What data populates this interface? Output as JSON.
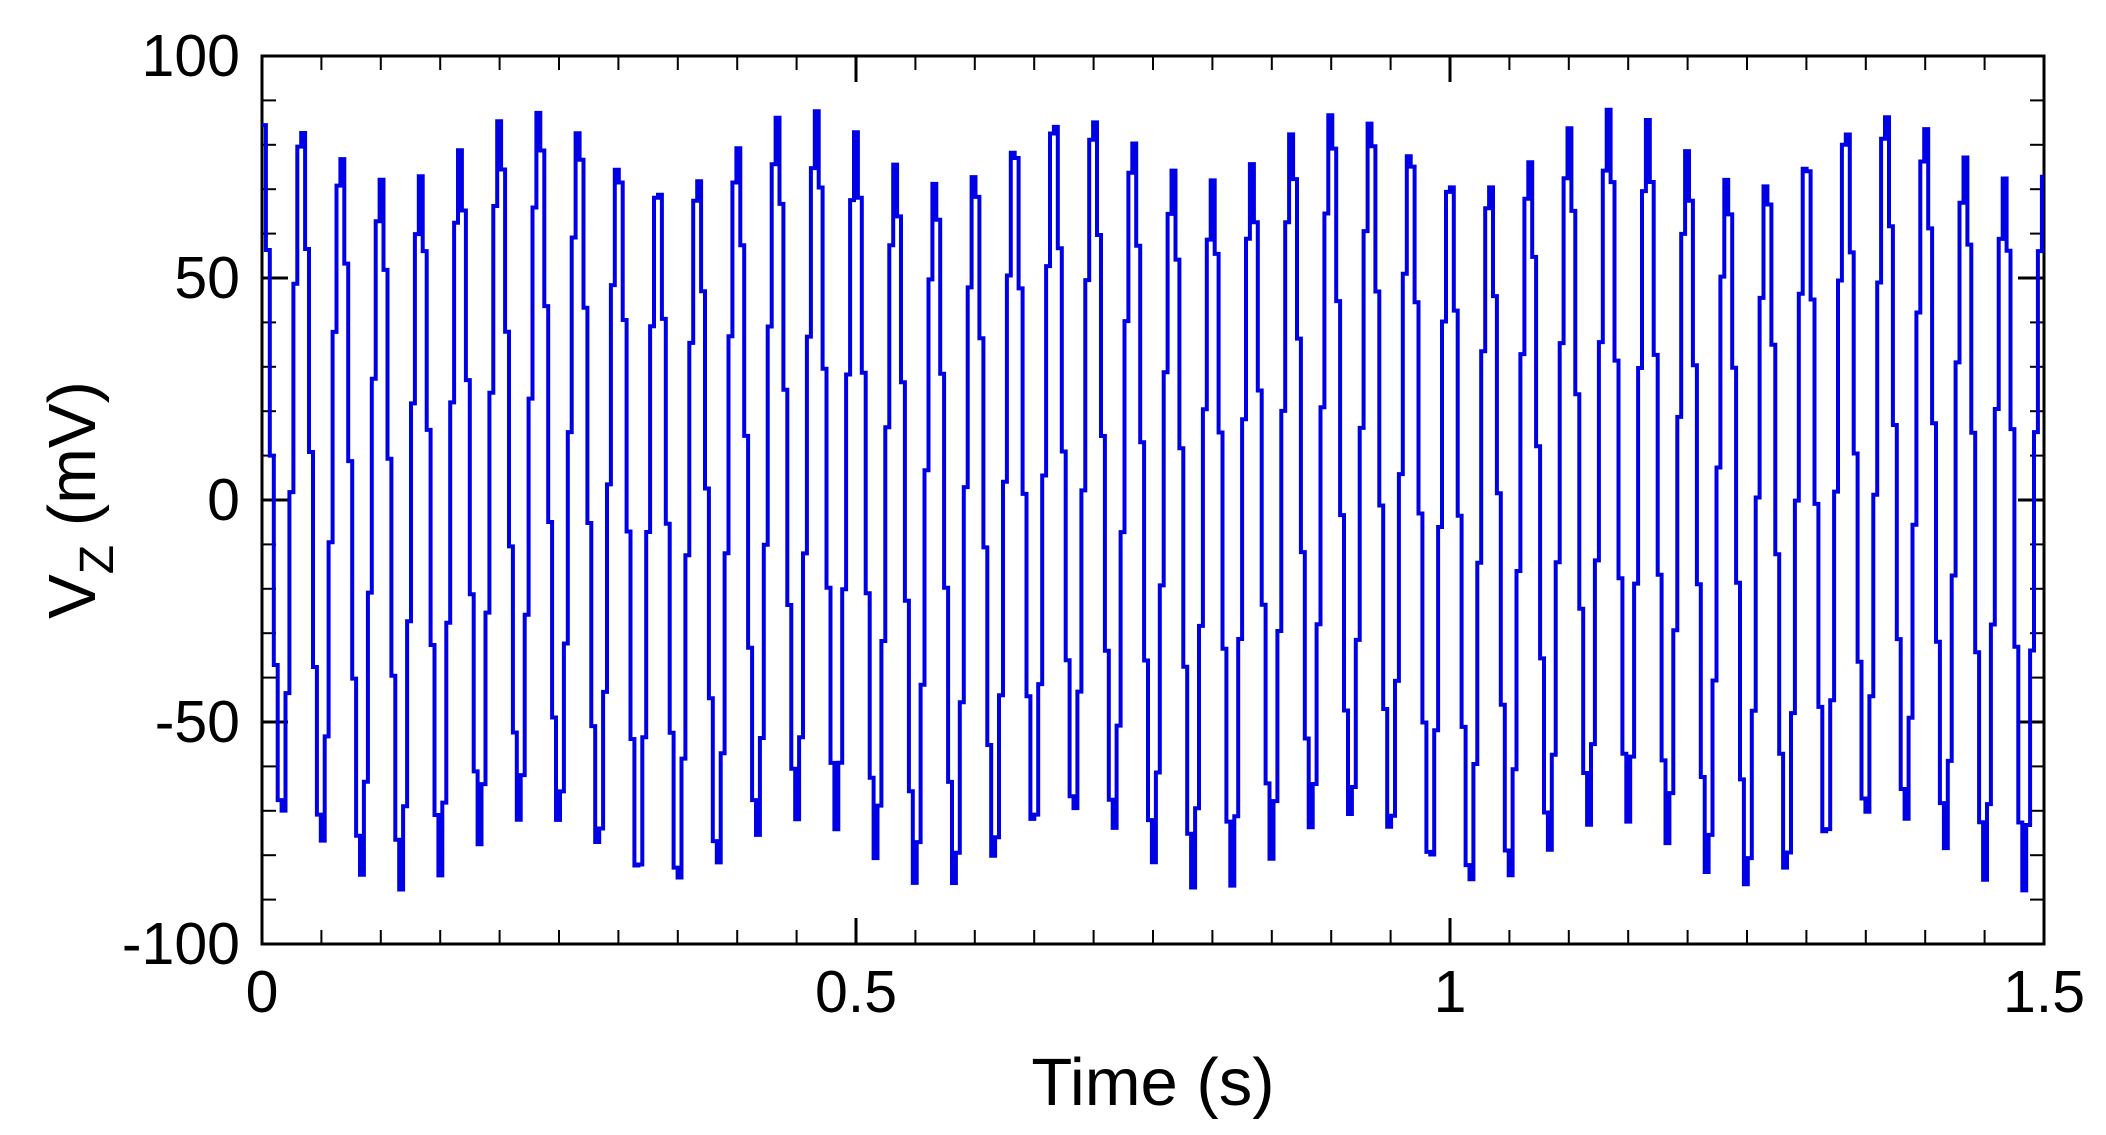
{
  "chart_data": {
    "type": "line",
    "title": "",
    "xlabel": "Time (s)",
    "ylabel": {
      "main": "V",
      "subscript": "Z",
      "unit": " (mV)"
    },
    "xlim": [
      0,
      1.5
    ],
    "ylim": [
      -100,
      100
    ],
    "x_ticks": [
      0,
      0.5,
      1,
      1.5
    ],
    "x_tick_labels": [
      "0",
      "0.5",
      "1",
      "1.5"
    ],
    "y_ticks": [
      -100,
      -50,
      0,
      50,
      100
    ],
    "y_tick_labels": [
      "-100",
      "-50",
      "0",
      "50",
      "100"
    ],
    "x_minor_step": 0.05,
    "y_minor_step": 10,
    "grid": false,
    "legend": "none",
    "line_color": "#0000e6",
    "series": [
      {
        "oscillation_frequency_hz": 30,
        "step_duration_s": 0.0033,
        "typical_peak_levels_mv": [
          80,
          88
        ],
        "typical_trough_levels_mv": [
          -80,
          -72
        ],
        "occasional_extreme_max_mv": 97,
        "occasional_extreme_min_mv": -88
      }
    ]
  }
}
